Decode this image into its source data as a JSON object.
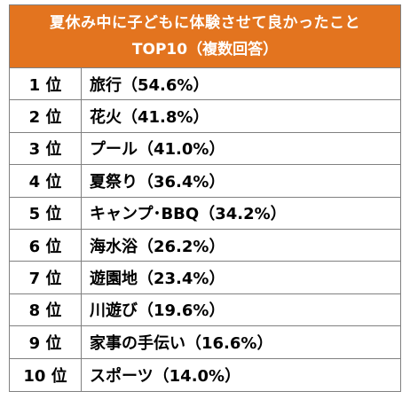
{
  "header": {
    "title_line1": "夏休み中に子どもに体験させて良かったこと",
    "title_line2": "TOP10（複数回答）"
  },
  "colors": {
    "header_bg": "#e3741f",
    "header_text": "#ffffff",
    "border": "#808080"
  },
  "rows": [
    {
      "rank": "1 位",
      "item": "旅行（54.6%）"
    },
    {
      "rank": "2 位",
      "item": "花火（41.8%）"
    },
    {
      "rank": "3 位",
      "item": "プール（41.0%）"
    },
    {
      "rank": "4 位",
      "item": "夏祭り（36.4%）"
    },
    {
      "rank": "5 位",
      "item": "キャンプ･BBQ（34.2%）"
    },
    {
      "rank": "6 位",
      "item": "海水浴（26.2%）"
    },
    {
      "rank": "7 位",
      "item": "遊園地（23.4%）"
    },
    {
      "rank": "8 位",
      "item": "川遊び（19.6%）"
    },
    {
      "rank": "9 位",
      "item": "家事の手伝い（16.6%）"
    },
    {
      "rank": "10 位",
      "item": "スポーツ（14.0%）"
    }
  ]
}
